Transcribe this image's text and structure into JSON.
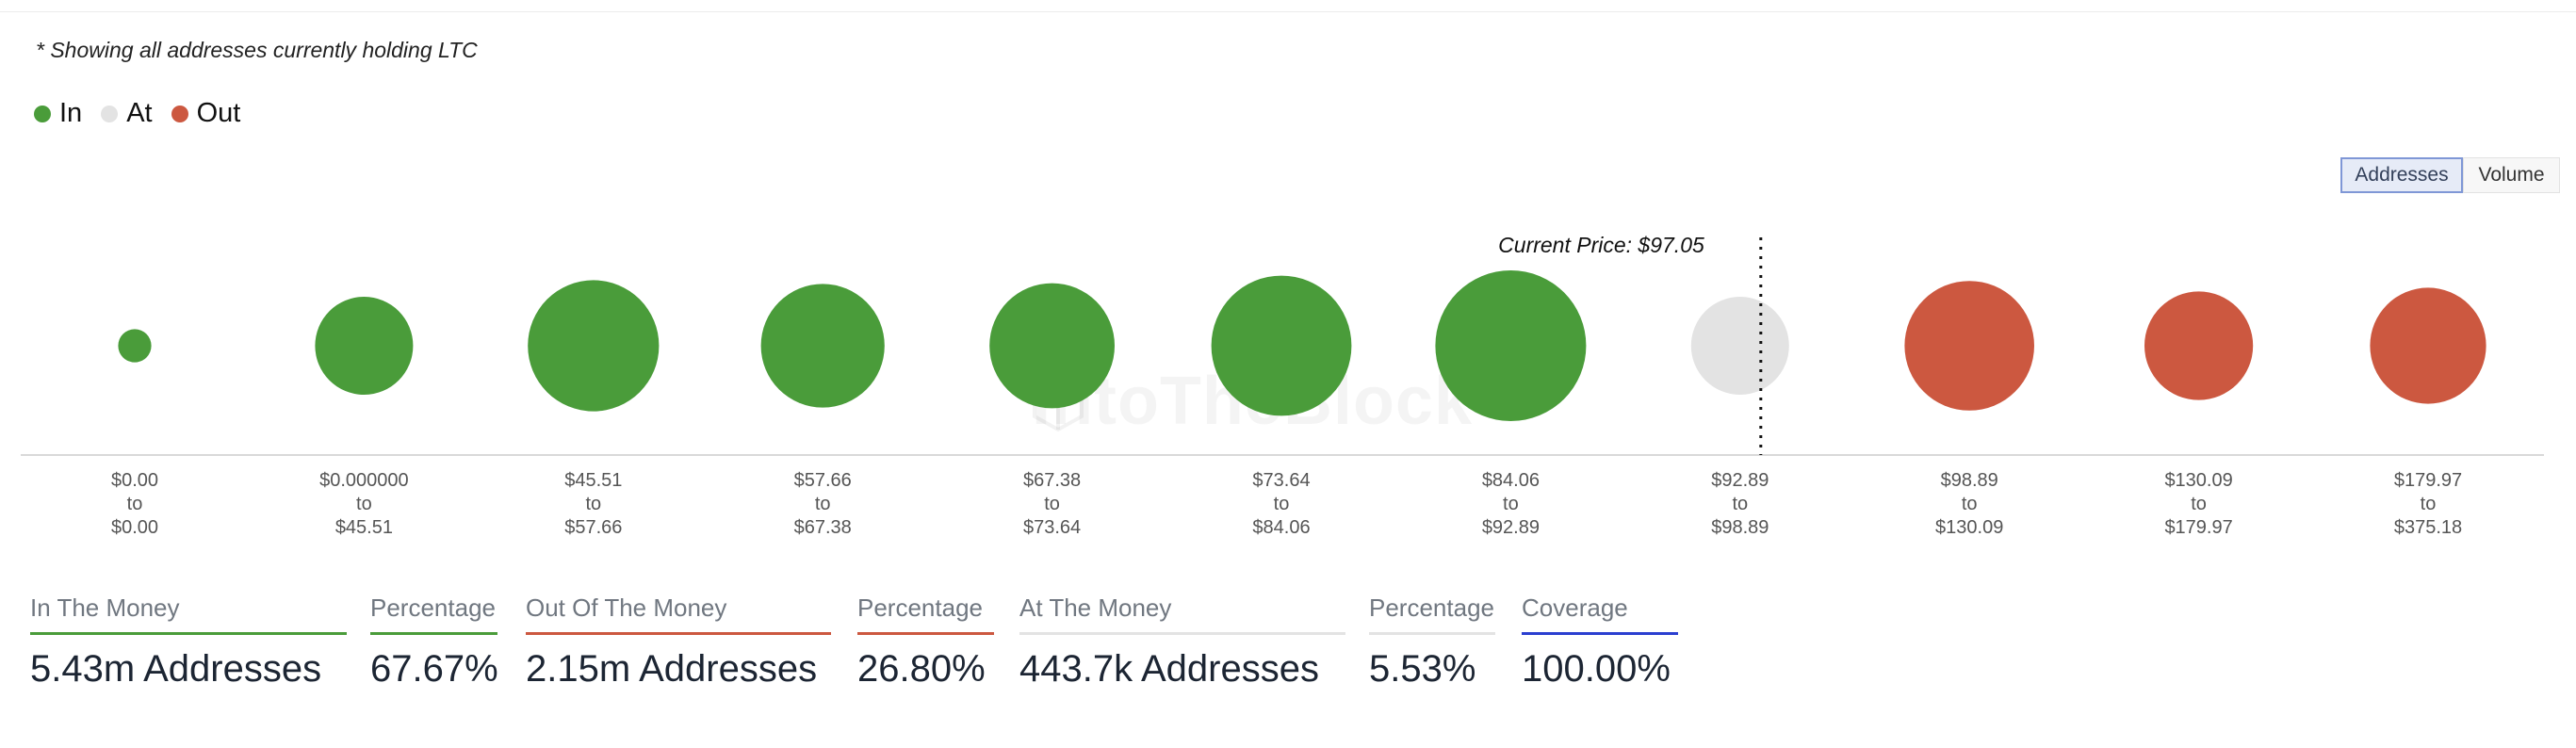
{
  "note": "* Showing all addresses currently holding LTC",
  "legend": [
    {
      "label": "In",
      "color": "#4a9c3a"
    },
    {
      "label": "At",
      "color": "#e3e3e3"
    },
    {
      "label": "Out",
      "color": "#cc5840"
    }
  ],
  "toggle": {
    "addresses_label": "Addresses",
    "volume_label": "Volume",
    "active": "Addresses"
  },
  "watermark": "IntoTheBlock",
  "current_price_label": "Current Price: $97.05",
  "chart_data": {
    "type": "bubble",
    "categories": [
      {
        "from": "$0.00",
        "to": "$0.00"
      },
      {
        "from": "$0.000000",
        "to": "$45.51"
      },
      {
        "from": "$45.51",
        "to": "$57.66"
      },
      {
        "from": "$57.66",
        "to": "$67.38"
      },
      {
        "from": "$67.38",
        "to": "$73.64"
      },
      {
        "from": "$73.64",
        "to": "$84.06"
      },
      {
        "from": "$84.06",
        "to": "$92.89"
      },
      {
        "from": "$92.89",
        "to": "$98.89"
      },
      {
        "from": "$98.89",
        "to": "$130.09"
      },
      {
        "from": "$130.09",
        "to": "$179.97"
      },
      {
        "from": "$179.97",
        "to": "$375.18"
      }
    ],
    "range_separator": "to",
    "status": [
      "In",
      "In",
      "In",
      "In",
      "In",
      "In",
      "In",
      "At",
      "Out",
      "Out",
      "Out"
    ],
    "relative_size": [
      0.22,
      0.65,
      0.87,
      0.82,
      0.83,
      0.93,
      1.0,
      0.65,
      0.86,
      0.72,
      0.77
    ],
    "current_price": 97.05,
    "current_price_between_categories": [
      7,
      8
    ]
  },
  "stats": [
    {
      "label": "In The Money",
      "value": "5.43m Addresses",
      "color": "#4a9c3a"
    },
    {
      "label": "Percentage",
      "value": "67.67%",
      "color": "#4a9c3a"
    },
    {
      "label": "Out Of The Money",
      "value": "2.15m Addresses",
      "color": "#cc5840"
    },
    {
      "label": "Percentage",
      "value": "26.80%",
      "color": "#cc5840"
    },
    {
      "label": "At The Money",
      "value": "443.7k Addresses",
      "color": "#e3e3e3"
    },
    {
      "label": "Percentage",
      "value": "5.53%",
      "color": "#e3e3e3"
    },
    {
      "label": "Coverage",
      "value": "100.00%",
      "color": "#2b3fd0"
    }
  ]
}
